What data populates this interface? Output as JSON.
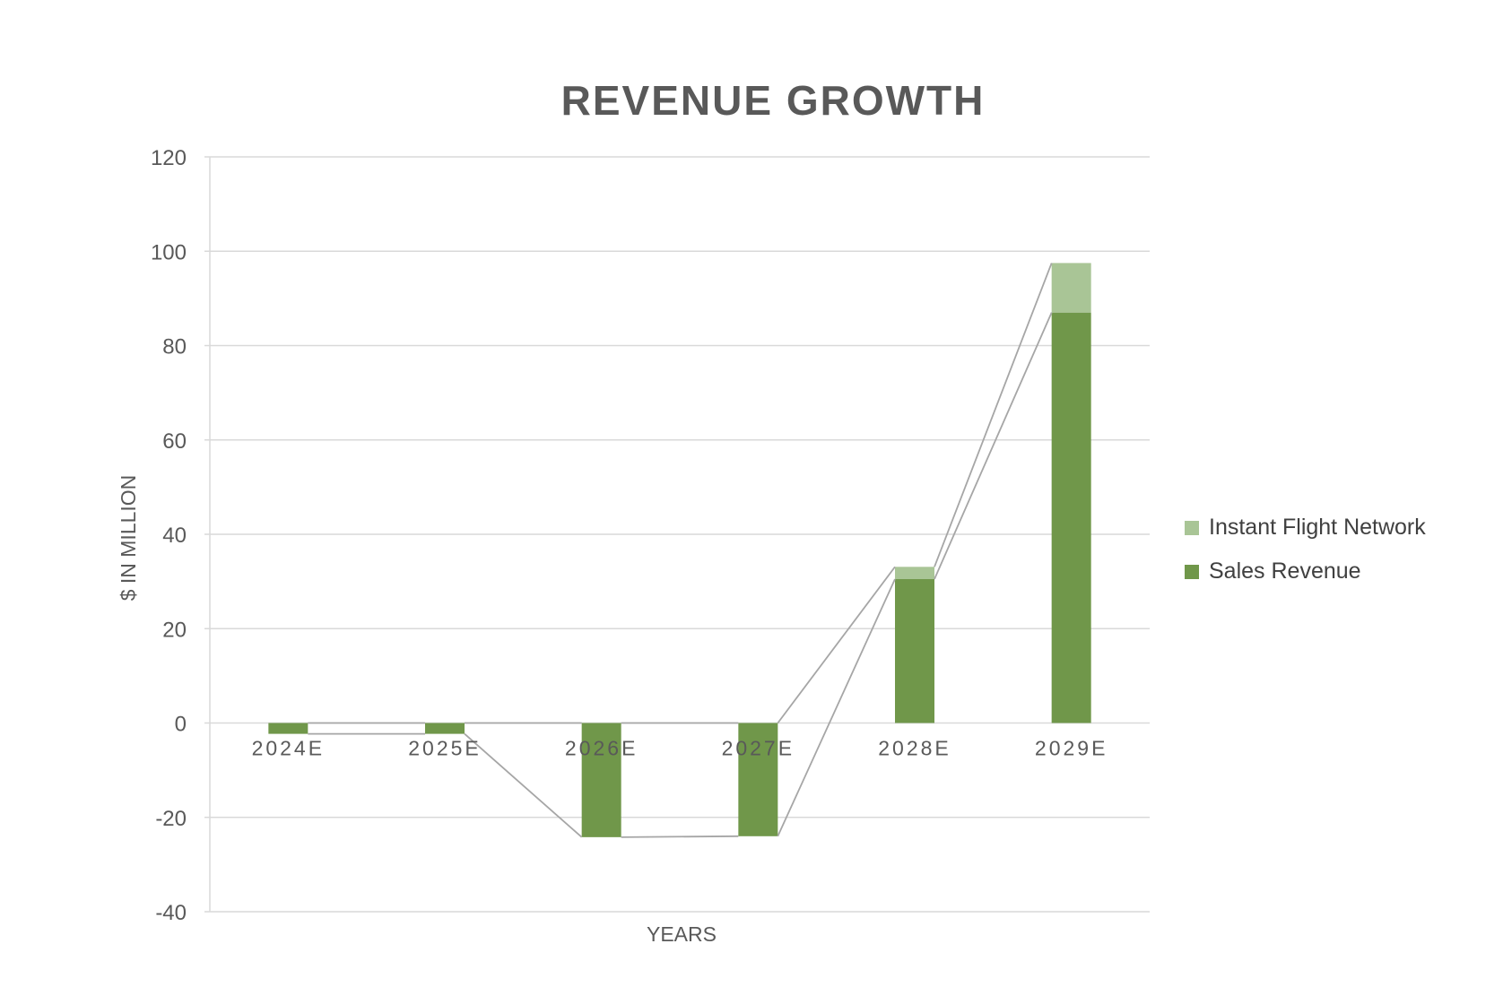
{
  "chart_data": {
    "type": "bar",
    "stacked": true,
    "title": "REVENUE GROWTH",
    "xlabel": "YEARS",
    "ylabel": "$ IN MILLION",
    "ylim": [
      -40,
      120
    ],
    "yticks": [
      -40,
      -20,
      0,
      20,
      40,
      60,
      80,
      100,
      120
    ],
    "grid": true,
    "legend_position": "right",
    "categories": [
      "2024E",
      "2025E",
      "2026E",
      "2027E",
      "2028E",
      "2029E"
    ],
    "series": [
      {
        "name": "Sales Revenue",
        "color": "#70974a",
        "values": [
          -2.3,
          -2.3,
          -24.2,
          -24.0,
          30.5,
          87.0
        ]
      },
      {
        "name": "Instant Flight Network",
        "color": "#a9c596",
        "values": [
          0,
          0,
          0,
          0,
          2.6,
          10.5
        ]
      }
    ],
    "series_lines_color": "#a6a6a6"
  }
}
